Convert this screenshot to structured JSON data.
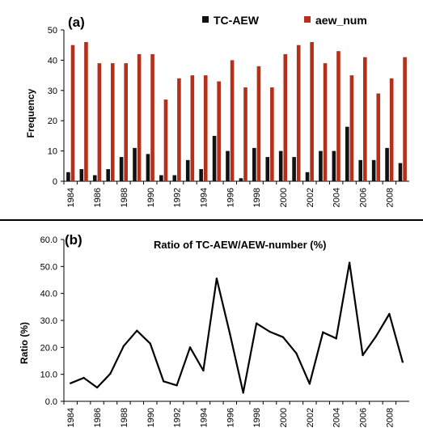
{
  "colors": {
    "tc_aew": "#111111",
    "aew_num": "#b5301a",
    "ratio_line": "#000000",
    "divider": "#000000"
  },
  "chart_data": [
    {
      "panel_label": "(a)",
      "type": "bar",
      "ylabel": "Frequency",
      "xlabel": "",
      "ylim": [
        0,
        50
      ],
      "yticks": [
        "0",
        "10",
        "20",
        "30",
        "40",
        "50"
      ],
      "categories": [
        "1984",
        "1985",
        "1986",
        "1987",
        "1988",
        "1989",
        "1990",
        "1991",
        "1992",
        "1993",
        "1994",
        "1995",
        "1996",
        "1997",
        "1998",
        "1999",
        "2000",
        "2001",
        "2002",
        "2003",
        "2004",
        "2005",
        "2006",
        "2007",
        "2008",
        "2009"
      ],
      "xtick_labels": [
        "1984",
        "1986",
        "1988",
        "1990",
        "1992",
        "1994",
        "1996",
        "1998",
        "2000",
        "2002",
        "2004",
        "2006",
        "2008"
      ],
      "series": [
        {
          "name": "TC-AEW",
          "values": [
            3,
            4,
            2,
            4,
            8,
            11,
            9,
            2,
            2,
            7,
            4,
            15,
            10,
            1,
            11,
            8,
            10,
            8,
            3,
            10,
            10,
            18,
            7,
            7,
            11,
            6
          ]
        },
        {
          "name": "aew_num",
          "values": [
            45,
            46,
            39,
            39,
            39,
            42,
            42,
            27,
            34,
            35,
            35,
            33,
            40,
            31,
            38,
            31,
            42,
            45,
            46,
            39,
            43,
            35,
            41,
            29,
            34,
            41
          ]
        }
      ],
      "legend_position": "top"
    },
    {
      "panel_label": "(b)",
      "type": "line",
      "title": "Ratio of TC-AEW/AEW-number (%)",
      "ylabel": "Ratio (%)",
      "xlabel": "",
      "ylim": [
        0,
        60
      ],
      "yticks": [
        "0.0",
        "10.0",
        "20.0",
        "30.0",
        "40.0",
        "50.0",
        "60.0"
      ],
      "x": [
        "1984",
        "1985",
        "1986",
        "1987",
        "1988",
        "1989",
        "1990",
        "1991",
        "1992",
        "1993",
        "1994",
        "1995",
        "1996",
        "1997",
        "1998",
        "1999",
        "2000",
        "2001",
        "2002",
        "2003",
        "2004",
        "2005",
        "2006",
        "2007",
        "2008",
        "2009"
      ],
      "xtick_labels": [
        "1984",
        "1986",
        "1988",
        "1990",
        "1992",
        "1994",
        "1996",
        "1998",
        "2000",
        "2002",
        "2004",
        "2006",
        "2008"
      ],
      "series": [
        {
          "values": [
            6.7,
            8.7,
            5.1,
            10.3,
            20.5,
            26.2,
            21.4,
            7.4,
            5.9,
            20.0,
            11.4,
            45.5,
            25.0,
            3.2,
            28.9,
            25.8,
            23.8,
            17.8,
            6.5,
            25.6,
            23.3,
            51.4,
            17.1,
            24.1,
            32.4,
            14.6
          ]
        }
      ]
    }
  ]
}
